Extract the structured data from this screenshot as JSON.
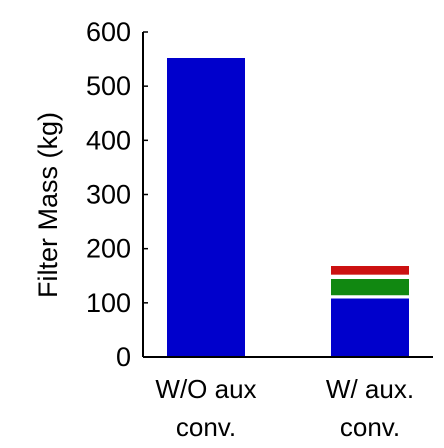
{
  "chart_data": {
    "type": "bar",
    "stacked": true,
    "ylabel": "Filter Mass (kg)",
    "ylim": [
      0,
      600
    ],
    "yticks": [
      0,
      100,
      200,
      300,
      400,
      500,
      600
    ],
    "categories": [
      {
        "line1": "W/O aux",
        "line2": "conv."
      },
      {
        "line1": "W/ aux.",
        "line2": "conv."
      }
    ],
    "segments": [
      [
        {
          "value": 552,
          "color": "#0000cc"
        }
      ],
      [
        {
          "value": 108,
          "color": "#0000cc"
        },
        {
          "value": 6,
          "color": "#ffffff"
        },
        {
          "value": 30,
          "color": "#118811"
        },
        {
          "value": 8,
          "color": "#ffffff"
        },
        {
          "value": 16,
          "color": "#cc1111"
        }
      ]
    ],
    "grid": false,
    "legend": false
  }
}
